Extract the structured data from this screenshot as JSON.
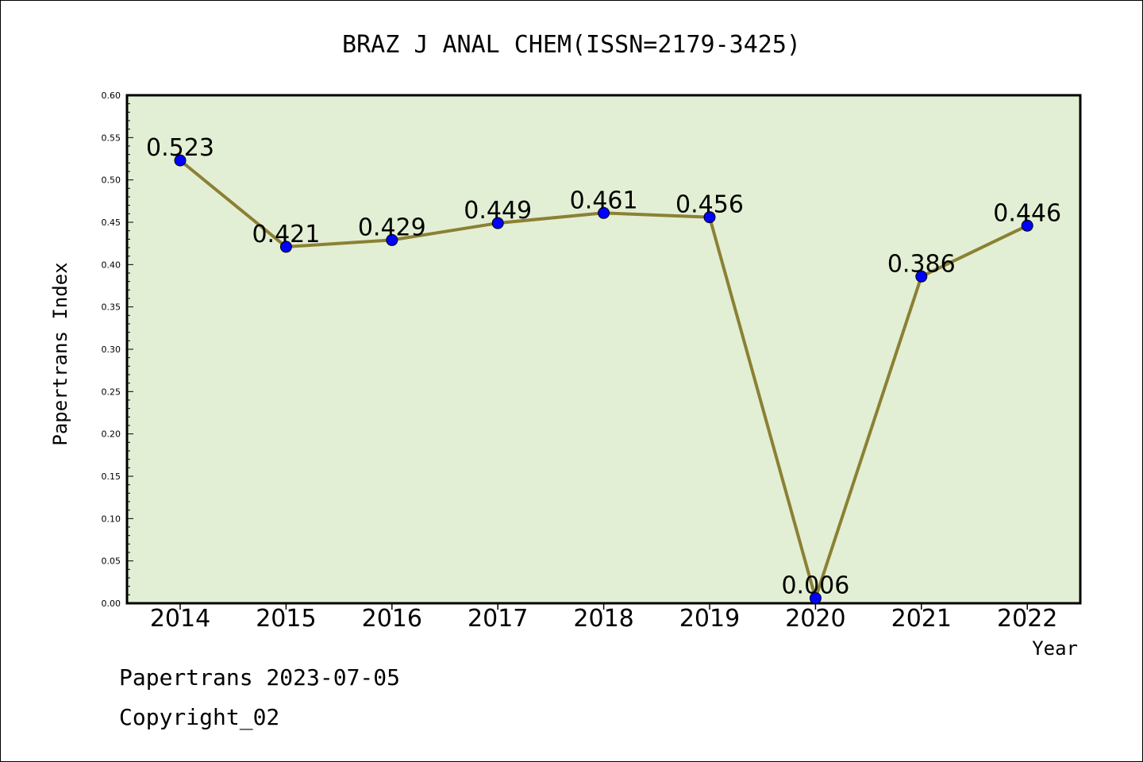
{
  "chart_data": {
    "type": "line",
    "title": "BRAZ J ANAL CHEM(ISSN=2179-3425)",
    "xlabel": "Year",
    "ylabel": "Papertrans Index",
    "categories": [
      "2014",
      "2015",
      "2016",
      "2017",
      "2018",
      "2019",
      "2020",
      "2021",
      "2022"
    ],
    "values": [
      0.523,
      0.421,
      0.429,
      0.449,
      0.461,
      0.456,
      0.006,
      0.386,
      0.446
    ],
    "data_labels": [
      "0.523",
      "0.421",
      "0.429",
      "0.449",
      "0.461",
      "0.456",
      "0.006",
      "0.386",
      "0.446"
    ],
    "ylim": [
      0,
      0.6
    ],
    "yticks": [
      "0.00",
      "0.05",
      "0.10",
      "0.15",
      "0.20",
      "0.25",
      "0.30",
      "0.35",
      "0.40",
      "0.45",
      "0.50",
      "0.55",
      "0.60"
    ],
    "grid": false,
    "legend": "none",
    "colors": {
      "plot_background": "#e2efd4",
      "line": "#8b8034",
      "marker": "#0000ff"
    }
  },
  "footer": {
    "line1": "Papertrans 2023-07-05",
    "line2": "Copyright_02"
  }
}
